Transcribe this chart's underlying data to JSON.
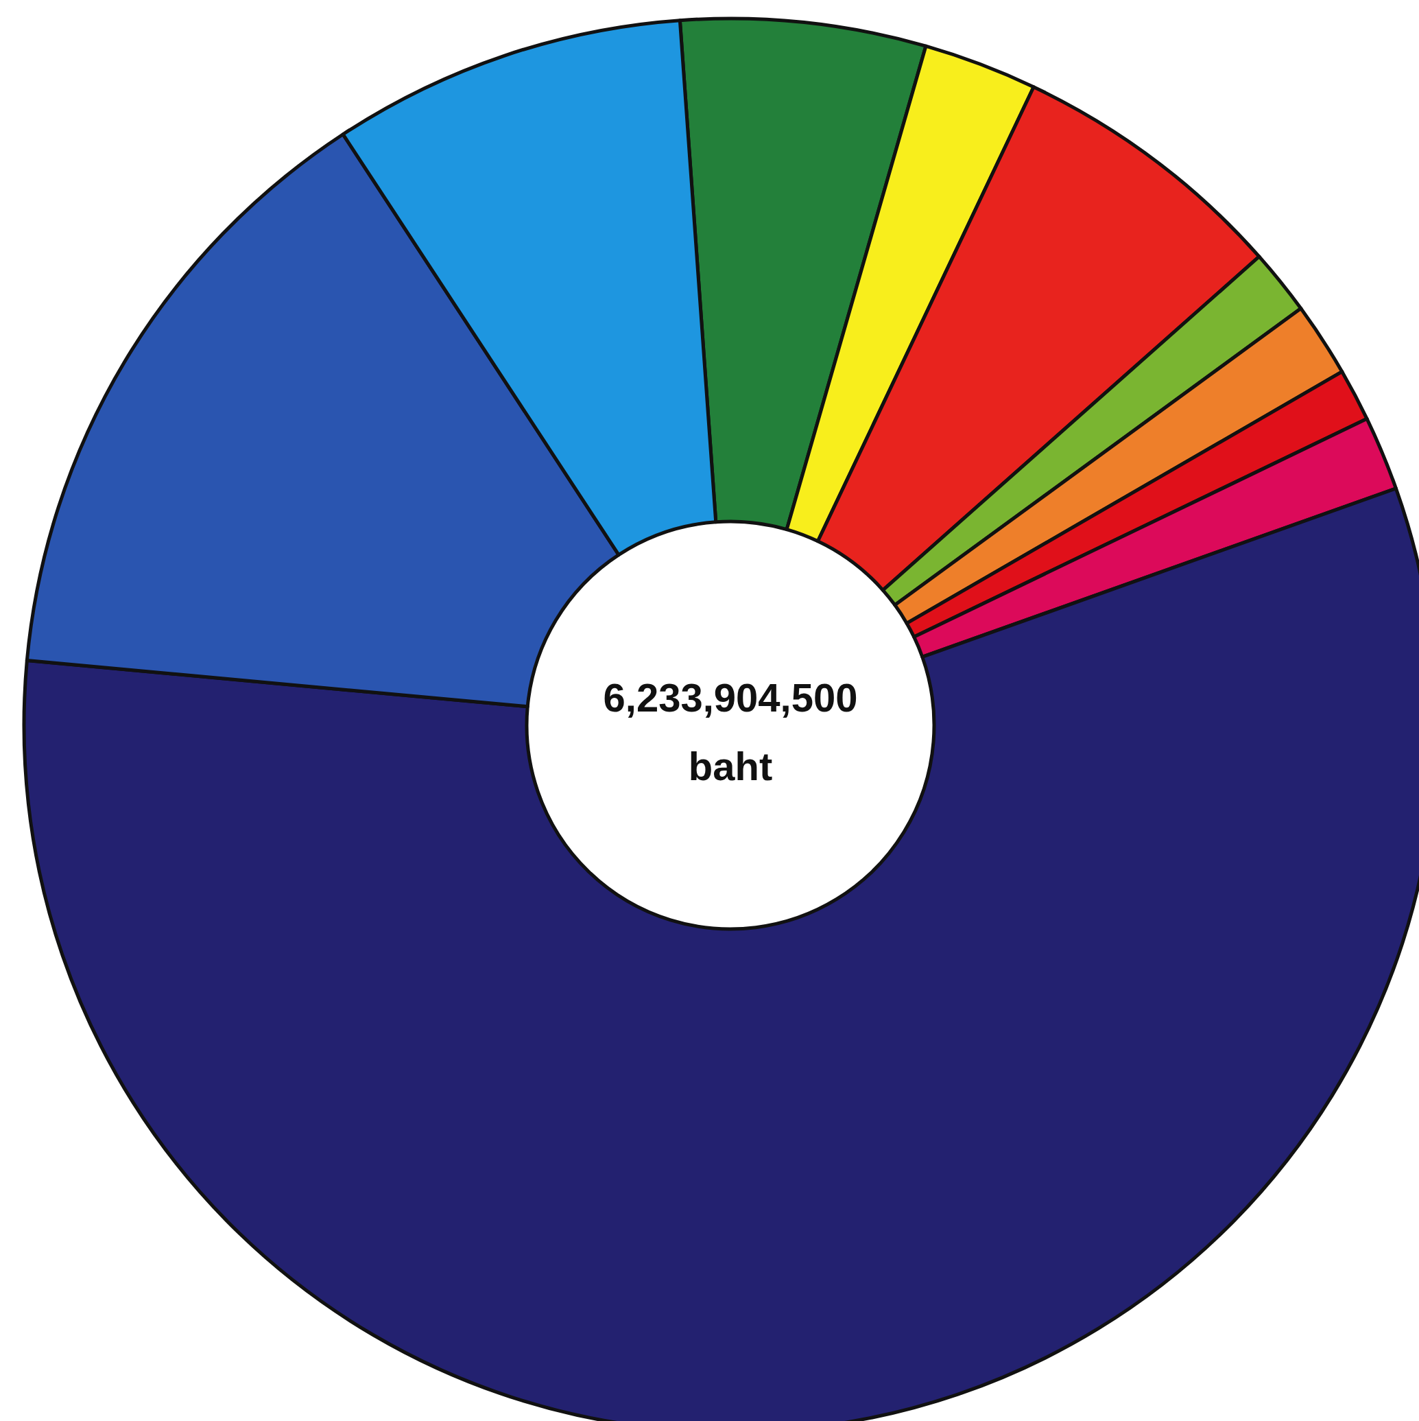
{
  "chart_data": {
    "type": "donut",
    "title": "6,233,904,500 baht",
    "categories": [
      null,
      null,
      null,
      null,
      null,
      null,
      null,
      null,
      null,
      null
    ],
    "values": [
      5.6,
      2.6,
      6.4,
      1.5,
      1.7,
      1.2,
      1.7,
      56.9,
      14.3,
      8.1
    ],
    "colors": [
      "#23803a",
      "#f8ee1c",
      "#e8231e",
      "#7ab531",
      "#ee7f2a",
      "#e0101a",
      "#dc0a5a",
      "#232170",
      "#2a55b0",
      "#1e96e0"
    ]
  }
}
